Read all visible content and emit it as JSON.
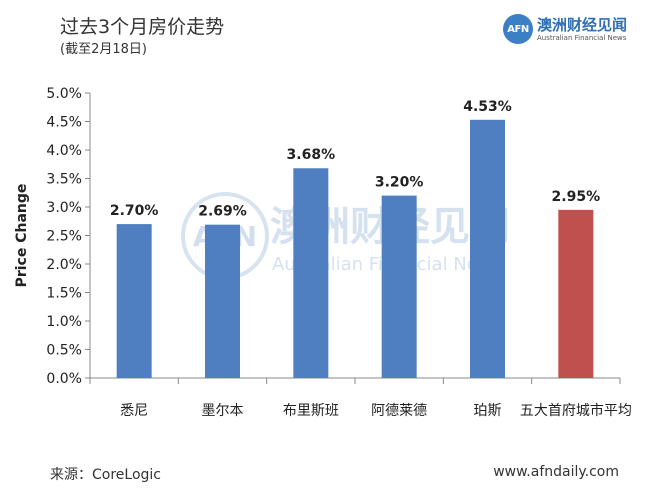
{
  "header": {
    "title": "过去3个月房价走势",
    "subtitle": "(截至2月18日)"
  },
  "logo": {
    "mark": "AFN",
    "name_cn": "澳洲财经见闻",
    "name_en": "Australian Financial News"
  },
  "watermark": {
    "name_cn": "澳洲财经见闻",
    "name_en": "Australian Financial News"
  },
  "footer": {
    "source": "来源：CoreLogic",
    "website": "www.afndaily.com"
  },
  "chart_data": {
    "type": "bar",
    "categories": [
      "悉尼",
      "墨尔本",
      "布里斯班",
      "阿德莱德",
      "珀斯",
      "五大首府城市平均"
    ],
    "values": [
      2.7,
      2.69,
      3.68,
      3.2,
      4.53,
      2.95
    ],
    "data_labels": [
      "2.70%",
      "2.69%",
      "3.68%",
      "3.20%",
      "4.53%",
      "2.95%"
    ],
    "ylabel": "Price Change",
    "ylim": [
      0,
      5
    ],
    "yticks": [
      0,
      0.5,
      1,
      1.5,
      2,
      2.5,
      3,
      3.5,
      4,
      4.5,
      5
    ],
    "ytick_labels": [
      "0.0%",
      "0.5%",
      "1.0%",
      "1.5%",
      "2.0%",
      "2.5%",
      "3.0%",
      "3.5%",
      "4.0%",
      "4.5%",
      "5.0%"
    ],
    "bar_colors": [
      "#4f7fc0",
      "#4f7fc0",
      "#4f7fc0",
      "#4f7fc0",
      "#4f7fc0",
      "#c0504d"
    ],
    "grid": false,
    "legend": "none"
  }
}
